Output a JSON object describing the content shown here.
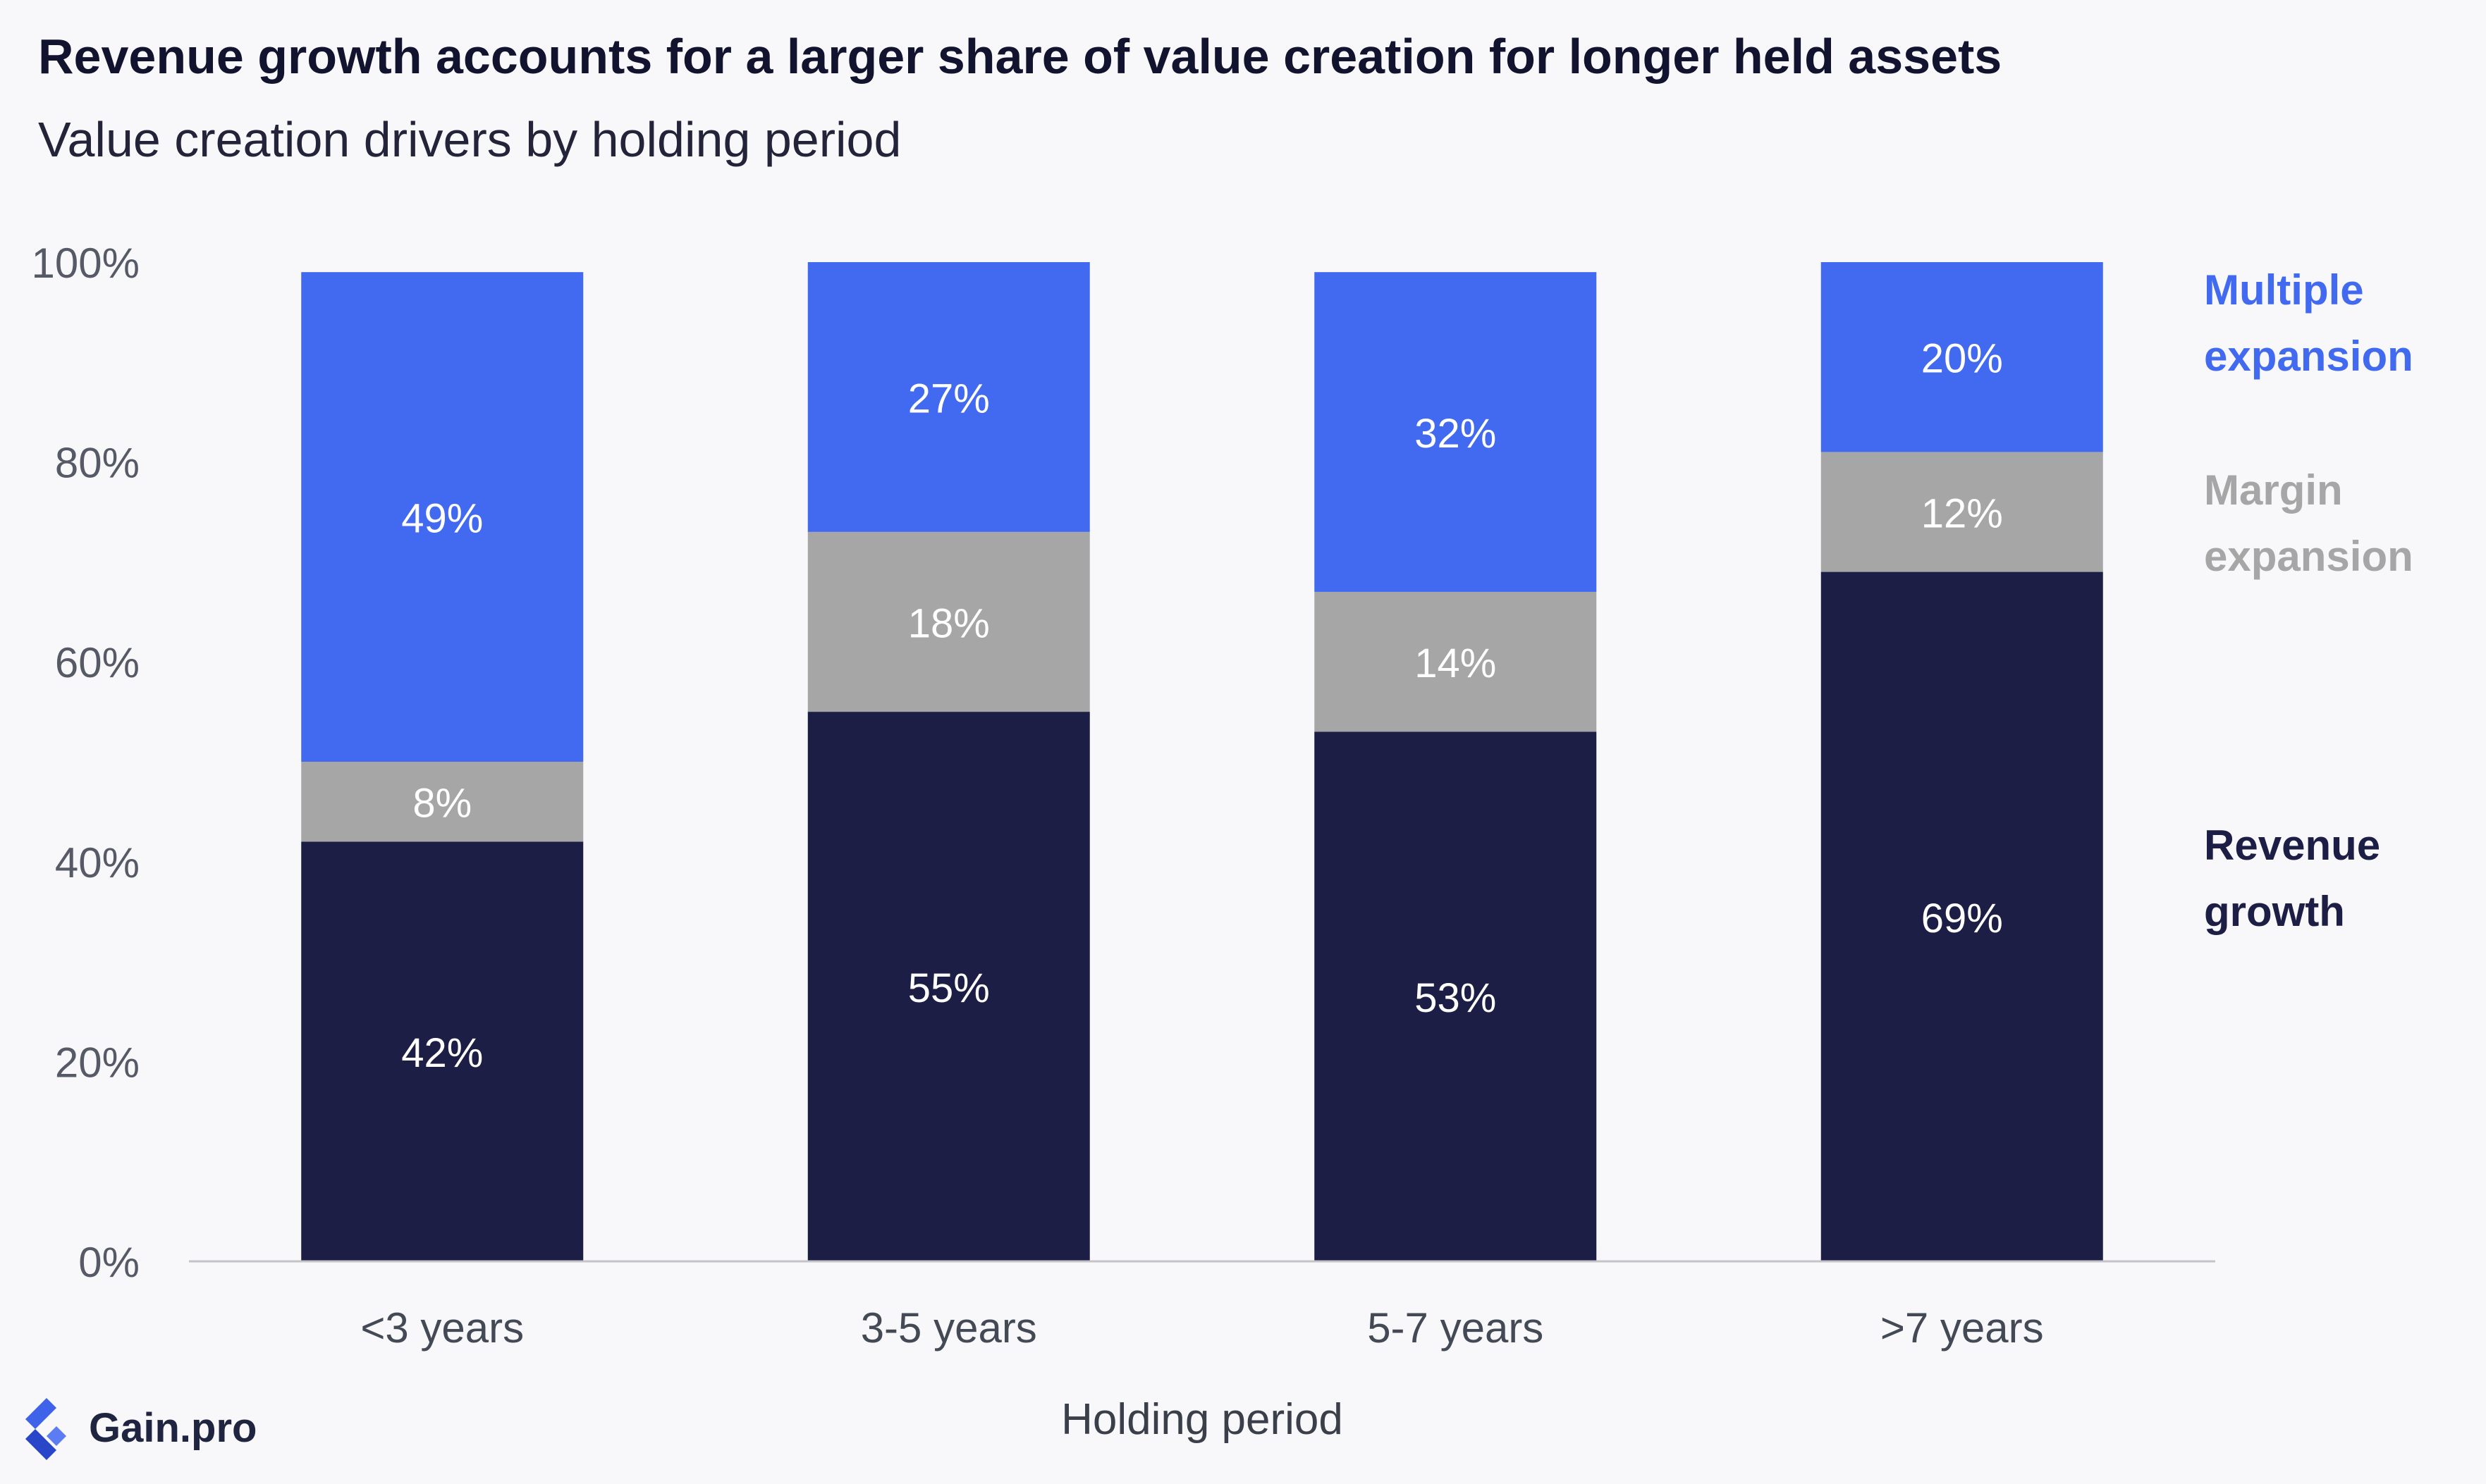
{
  "title": "Revenue growth accounts for a larger share of value creation for longer held assets",
  "subtitle": "Value creation drivers by holding period",
  "brand": "Gain.pro",
  "chart_data": {
    "type": "bar",
    "stacked": true,
    "categories": [
      "<3 years",
      "3-5 years",
      "5-7 years",
      ">7 years"
    ],
    "series": [
      {
        "name": "Revenue growth",
        "values": [
          42,
          55,
          53,
          69
        ],
        "color": "#1d1e45",
        "labels": [
          "42%",
          "55%",
          "53%",
          "69%"
        ]
      },
      {
        "name": "Margin expansion",
        "values": [
          8,
          18,
          14,
          12
        ],
        "color": "#a6a6a6",
        "labels": [
          "8%",
          "18%",
          "14%",
          "12%"
        ]
      },
      {
        "name": "Multiple expansion",
        "values": [
          49,
          27,
          32,
          20
        ],
        "color": "#416af0",
        "labels": [
          "49%",
          "27%",
          "32%",
          "20%"
        ]
      }
    ],
    "legend": [
      {
        "lines": [
          "Multiple",
          "expansion"
        ],
        "color": "#416af0"
      },
      {
        "lines": [
          "Margin",
          "expansion"
        ],
        "color": "#a6a6a6"
      },
      {
        "lines": [
          "Revenue",
          "growth"
        ],
        "color": "#1d1e45"
      }
    ],
    "legend_position": "right",
    "xlabel": "Holding period",
    "ylabel": "",
    "ylim": [
      0,
      100
    ],
    "yticks": [
      0,
      20,
      40,
      60,
      80,
      100
    ],
    "ytick_labels": [
      "0%",
      "20%",
      "40%",
      "60%",
      "80%",
      "100%"
    ],
    "grid": false
  }
}
